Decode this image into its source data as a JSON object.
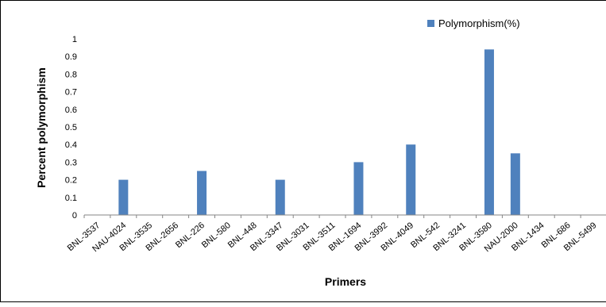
{
  "chart_data": {
    "type": "bar",
    "title": "",
    "xlabel": "Primers",
    "ylabel": "Percent polymorphism",
    "ylim": [
      0,
      1
    ],
    "yticks": [
      "0",
      "0.1",
      "0.2",
      "0.3",
      "0.4",
      "0.5",
      "0.6",
      "0.7",
      "0.8",
      "0.9",
      "1"
    ],
    "grid": false,
    "legend_position": "top-right",
    "bar_color": "#4F81BD",
    "categories": [
      "BNL-3537",
      "NAU-4024",
      "BNL-3535",
      "BNL-2656",
      "BNL-226",
      "BNL-580",
      "BNL-448",
      "BNL-3347",
      "BNL-3031",
      "BNL-3511",
      "BNL-1694",
      "BNL-3992",
      "BNL-4049",
      "BNL-542",
      "BNL-3241",
      "BNL-3580",
      "NAU-2000",
      "BNL-1434",
      "BNL-686",
      "BNL-5499"
    ],
    "series": [
      {
        "name": "Polymorphism(%)",
        "values": [
          0,
          0.2,
          0,
          0,
          0.25,
          0,
          0,
          0.2,
          0,
          0,
          0.3,
          0,
          0.4,
          0,
          0,
          0.94,
          0.35,
          0,
          0,
          0
        ]
      }
    ]
  }
}
